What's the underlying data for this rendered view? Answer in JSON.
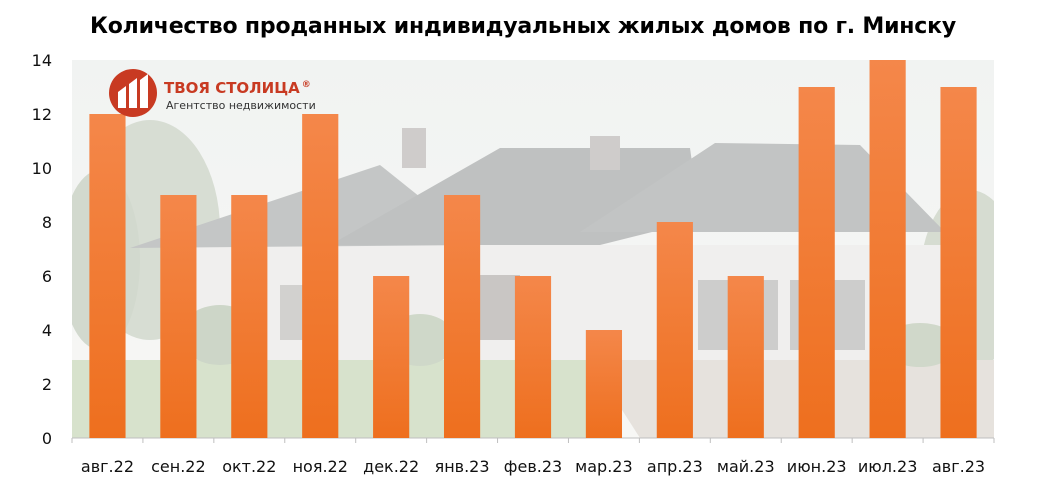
{
  "chart_data": {
    "type": "bar",
    "title": "Количество проданных индивидуальных жилых домов по г. Минску",
    "categories": [
      "авг.22",
      "сен.22",
      "окт.22",
      "ноя.22",
      "дек.22",
      "янв.23",
      "фев.23",
      "мар.23",
      "апр.23",
      "май.23",
      "июн.23",
      "июл.23",
      "авг.23"
    ],
    "values": [
      12,
      9,
      9,
      12,
      6,
      9,
      6,
      4,
      8,
      6,
      13,
      14,
      13
    ],
    "ylim": [
      0,
      14
    ],
    "yticks": [
      0,
      2,
      4,
      6,
      8,
      10,
      12,
      14
    ],
    "xlabel": "",
    "ylabel": "",
    "grid": false,
    "legend": "none",
    "bar_color_top": "#f4874a",
    "bar_color_bottom": "#ee6f1e"
  },
  "logo": {
    "name": "ТВОЯ СТОЛИЦА",
    "registered": "®",
    "tagline": "Агентство недвижимости",
    "color": "#c83a22",
    "icon": "house-logo-icon"
  }
}
